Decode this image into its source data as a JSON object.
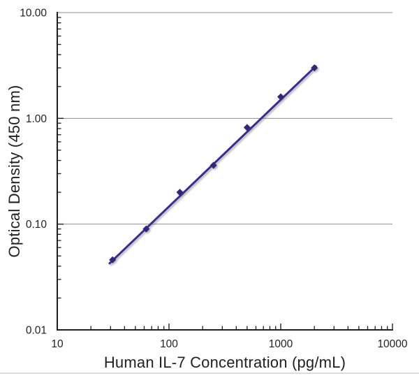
{
  "chart_data": {
    "type": "scatter",
    "title": "",
    "xlabel": "Human IL-7 Concentration (pg/mL)",
    "ylabel": "Optical Density (450 nm)",
    "x_scale": "log",
    "y_scale": "log",
    "xlim": [
      10,
      10000
    ],
    "ylim": [
      0.01,
      10
    ],
    "grid": "horizontal-only",
    "legend": "none",
    "x_ticks": [
      {
        "value": 10,
        "label": "10"
      },
      {
        "value": 100,
        "label": "100"
      },
      {
        "value": 1000,
        "label": "1000"
      },
      {
        "value": 10000,
        "label": "10000"
      }
    ],
    "y_ticks": [
      {
        "value": 0.01,
        "label": "0.01"
      },
      {
        "value": 0.1,
        "label": "0.10"
      },
      {
        "value": 1,
        "label": "1.00"
      },
      {
        "value": 10,
        "label": "10.00"
      }
    ],
    "gridlines_y": [
      0.1,
      1,
      10
    ],
    "series": [
      {
        "name": "human-il7-standard-curve",
        "marker": "diamond",
        "points": [
          [
            31.25,
            0.046
          ],
          [
            62.5,
            0.09
          ],
          [
            125,
            0.2
          ],
          [
            250,
            0.36
          ],
          [
            500,
            0.82
          ],
          [
            1000,
            1.6
          ],
          [
            2000,
            3.0
          ]
        ],
        "fit_line": {
          "x": [
            29,
            2085
          ],
          "y": [
            0.042,
            3.15
          ]
        }
      }
    ],
    "colors": {
      "line": "#3b2b91",
      "marker": "#352478",
      "grid": "#8f8f8f",
      "axis": "#231f20",
      "text": "#231f20"
    }
  }
}
